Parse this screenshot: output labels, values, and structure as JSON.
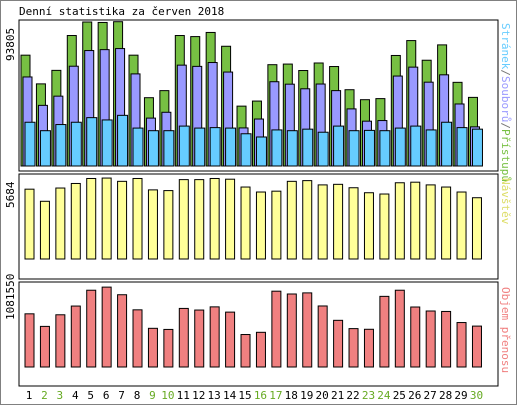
{
  "chart_data": [
    {
      "type": "bar",
      "title": "Denní statistika za červen 2018",
      "ymax_label": "93805",
      "ymax": 93805,
      "categories": [
        "1",
        "2",
        "3",
        "4",
        "5",
        "6",
        "7",
        "8",
        "9",
        "10",
        "11",
        "12",
        "13",
        "14",
        "15",
        "16",
        "17",
        "18",
        "19",
        "20",
        "21",
        "22",
        "23",
        "24",
        "25",
        "26",
        "27",
        "28",
        "29",
        "30"
      ],
      "weekend_days": [
        "2",
        "3",
        "9",
        "10",
        "16",
        "17",
        "23",
        "24",
        "30"
      ],
      "series": [
        {
          "name": "Přístupů",
          "color": "#77c043",
          "values": [
            72200,
            53500,
            62300,
            85000,
            93800,
            93500,
            94000,
            72200,
            44500,
            49100,
            85000,
            84300,
            87000,
            78000,
            39000,
            42300,
            66000,
            66400,
            62200,
            67100,
            64800,
            49700,
            43200,
            43900,
            72000,
            81700,
            68900,
            78900,
            54500,
            44700
          ]
        },
        {
          "name": "Souborů",
          "color": "#9999ff",
          "values": [
            58000,
            39500,
            45500,
            65000,
            75200,
            75800,
            76500,
            60000,
            31200,
            35000,
            65700,
            64900,
            67400,
            61200,
            24800,
            30600,
            54900,
            53300,
            50300,
            53400,
            49100,
            37200,
            29200,
            29600,
            58600,
            64400,
            54600,
            59400,
            40400,
            25500
          ]
        },
        {
          "name": "Stránek",
          "color": "#66ccff",
          "values": [
            28500,
            23000,
            27000,
            28500,
            31500,
            30000,
            33000,
            24700,
            23000,
            23000,
            26000,
            24700,
            25000,
            24700,
            21000,
            18900,
            23500,
            23000,
            24000,
            22000,
            26000,
            23000,
            23200,
            23000,
            24700,
            26000,
            23500,
            28500,
            25000,
            24000
          ]
        }
      ]
    },
    {
      "type": "bar",
      "ymax_label": "5684",
      "ymax": 5684,
      "categories": [
        "1",
        "2",
        "3",
        "4",
        "5",
        "6",
        "7",
        "8",
        "9",
        "10",
        "11",
        "12",
        "13",
        "14",
        "15",
        "16",
        "17",
        "18",
        "19",
        "20",
        "21",
        "22",
        "23",
        "24",
        "25",
        "26",
        "27",
        "28",
        "29",
        "30"
      ],
      "series": [
        {
          "name": "Návštěv",
          "color": "#ffff99",
          "values": [
            4900,
            4050,
            4980,
            5300,
            5650,
            5680,
            5450,
            5650,
            4850,
            4800,
            5570,
            5570,
            5650,
            5600,
            5050,
            4700,
            4760,
            5450,
            5500,
            5200,
            5240,
            5000,
            4650,
            4560,
            5350,
            5390,
            5200,
            5050,
            4700,
            4300
          ]
        }
      ]
    },
    {
      "type": "bar",
      "ymax_label": "1081550",
      "ymax": 1081550,
      "categories": [
        "1",
        "2",
        "3",
        "4",
        "5",
        "6",
        "7",
        "8",
        "9",
        "10",
        "11",
        "12",
        "13",
        "14",
        "15",
        "16",
        "17",
        "18",
        "19",
        "20",
        "21",
        "22",
        "23",
        "24",
        "25",
        "26",
        "27",
        "28",
        "29",
        "30"
      ],
      "series": [
        {
          "name": "Objem přenosu",
          "color": "#f08080",
          "values": [
            719000,
            549000,
            706000,
            824000,
            1038000,
            1080000,
            977000,
            773000,
            523000,
            508000,
            792000,
            770000,
            813000,
            742000,
            439000,
            469000,
            1025000,
            987000,
            1002000,
            825000,
            631000,
            519000,
            510000,
            955000,
            1038000,
            811000,
            757000,
            751000,
            601000,
            553000
          ]
        }
      ]
    }
  ]
}
